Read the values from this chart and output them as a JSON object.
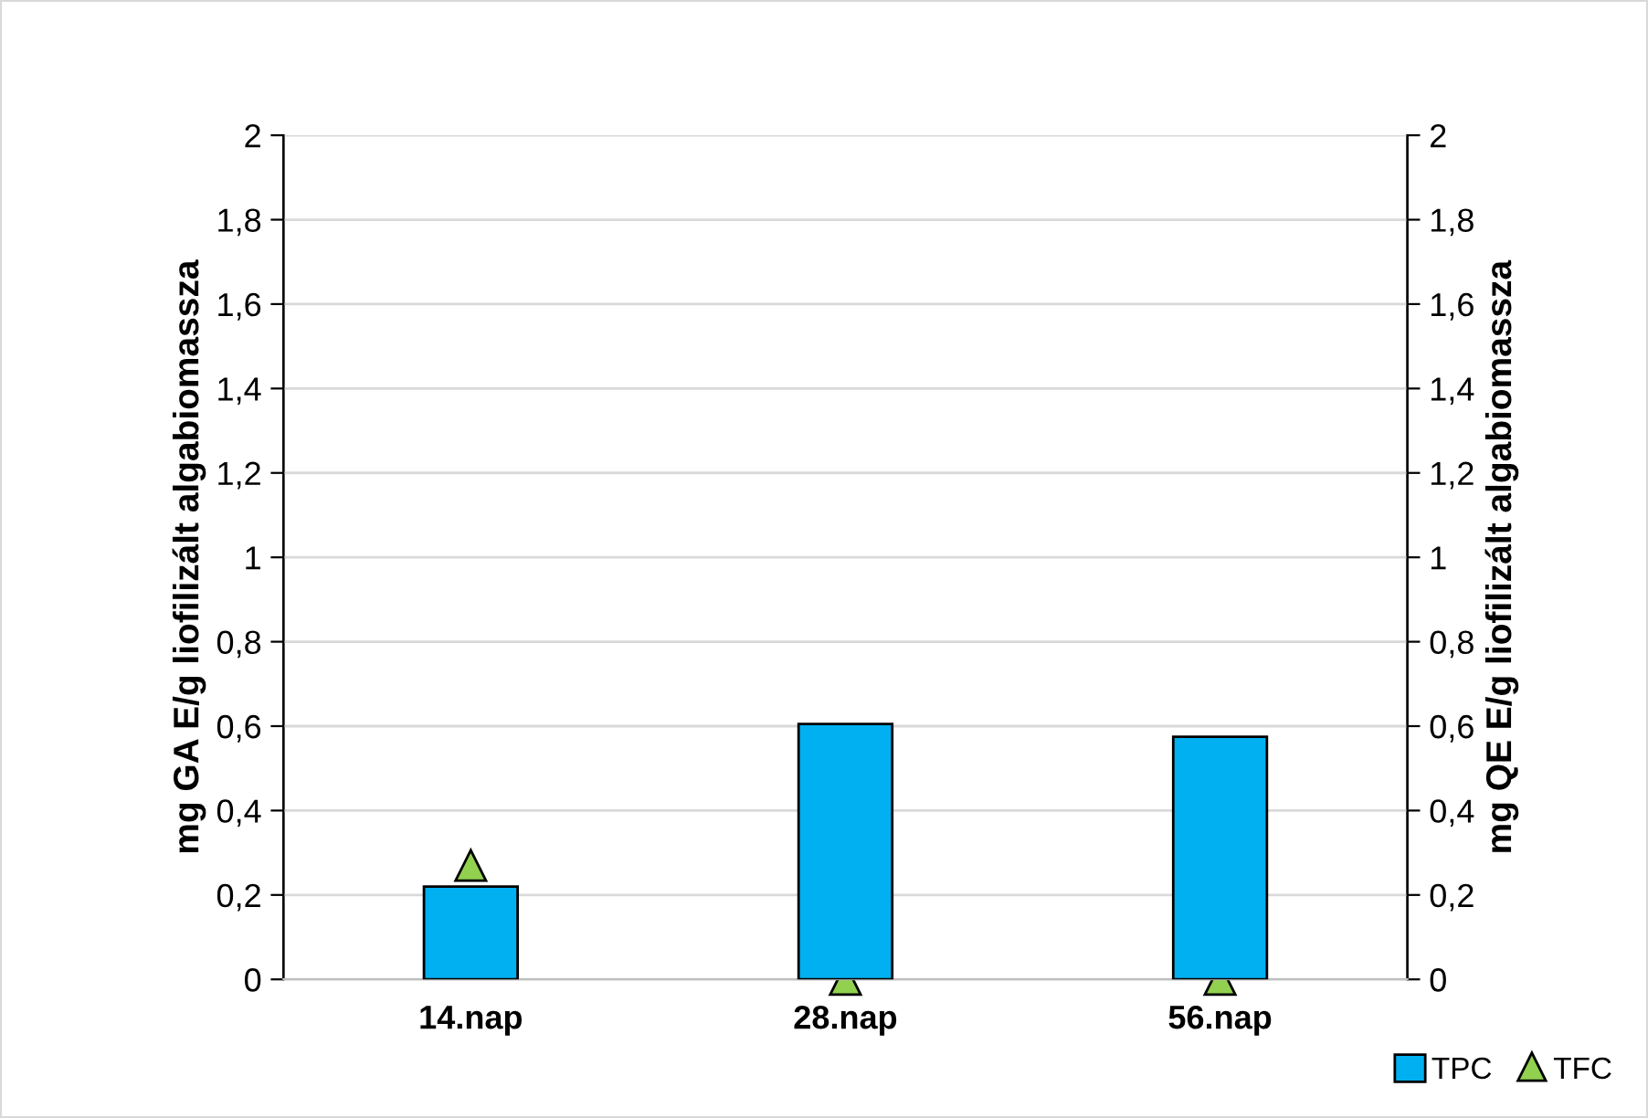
{
  "chart_data": {
    "type": "bar",
    "categories": [
      "14.nap",
      "28.nap",
      "56.nap"
    ],
    "series": [
      {
        "name": "TPC",
        "color": "#00b0f0",
        "values": [
          0.22,
          0.605,
          0.575
        ]
      },
      {
        "name": "TFC",
        "type": "scatter",
        "axis": "y2",
        "marker": "triangle",
        "color": "#92d050",
        "values": [
          0.27,
          0,
          0
        ]
      }
    ],
    "ylabel": "mg GA E/g liofilizált algabiomassza",
    "y2label": "mg QE E/g liofilizált algabiomassza",
    "ylim": [
      0,
      2
    ],
    "yticks": [
      0,
      {
        "value": 0.2,
        "label": "0,2"
      },
      {
        "value": 0.4,
        "label": "0,4"
      },
      {
        "value": 0.6,
        "label": "0,6"
      },
      {
        "value": 0.8,
        "label": "0,8"
      },
      1,
      {
        "value": 1.2,
        "label": "1,2"
      },
      {
        "value": 1.4,
        "label": "1,4"
      },
      {
        "value": 1.6,
        "label": "1,6"
      },
      {
        "value": 1.8,
        "label": "1,8"
      },
      2
    ],
    "y2lim": [
      0,
      2
    ],
    "y2ticks": [
      0,
      {
        "value": 0.2,
        "label": "0,2"
      },
      {
        "value": 0.4,
        "label": "0,4"
      },
      {
        "value": 0.6,
        "label": "0,6"
      },
      {
        "value": 0.8,
        "label": "0,8"
      },
      1,
      {
        "value": 1.2,
        "label": "1,2"
      },
      {
        "value": 1.4,
        "label": "1,4"
      },
      {
        "value": 1.6,
        "label": "1,6"
      },
      {
        "value": 1.8,
        "label": "1,8"
      },
      2
    ],
    "grid": "y",
    "legend": "bottom right"
  }
}
